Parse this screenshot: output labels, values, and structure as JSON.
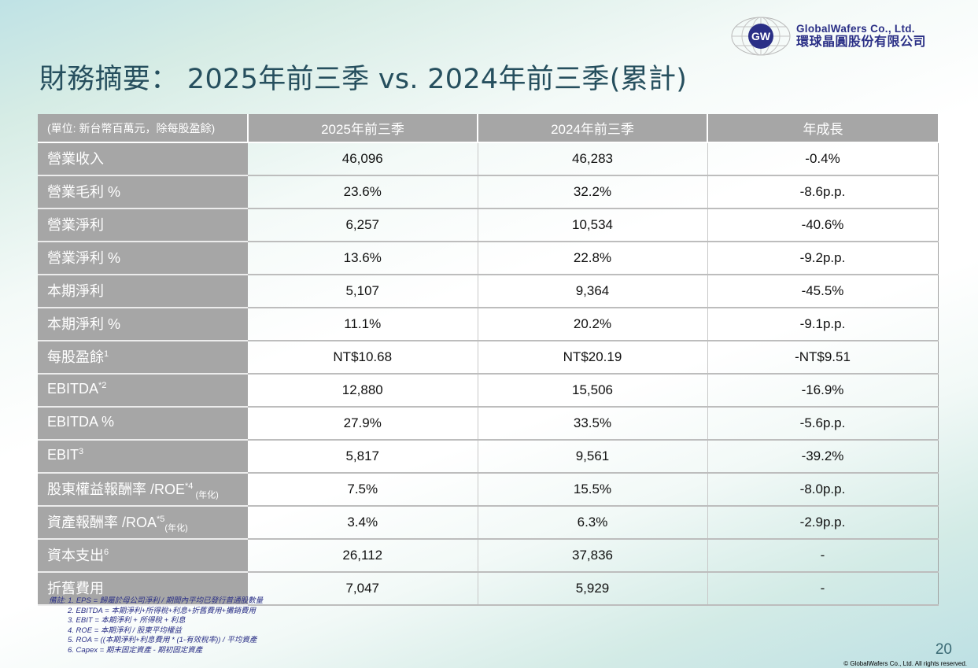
{
  "logo": {
    "icon_text": "GW",
    "company_en": "GlobalWafers Co., Ltd.",
    "company_zh": "環球晶圓股份有限公司"
  },
  "title": "財務摘要： 2025年前三季 vs. 2024年前三季(累計)",
  "table": {
    "headers": [
      "(單位: 新台幣百萬元，除每股盈餘)",
      "2025年前三季",
      "2024年前三季",
      "年成長"
    ],
    "rows": [
      {
        "label": "營業收入",
        "sup": "",
        "sub": "",
        "v2025": "46,096",
        "v2024": "46,283",
        "growth": "-0.4%"
      },
      {
        "label": "營業毛利 %",
        "sup": "",
        "sub": "",
        "v2025": "23.6%",
        "v2024": "32.2%",
        "growth": "-8.6p.p."
      },
      {
        "label": "營業淨利",
        "sup": "",
        "sub": "",
        "v2025": "6,257",
        "v2024": "10,534",
        "growth": "-40.6%"
      },
      {
        "label": "營業淨利 %",
        "sup": "",
        "sub": "",
        "v2025": "13.6%",
        "v2024": "22.8%",
        "growth": "-9.2p.p."
      },
      {
        "label": "本期淨利",
        "sup": "",
        "sub": "",
        "v2025": "5,107",
        "v2024": "9,364",
        "growth": "-45.5%"
      },
      {
        "label": "本期淨利 %",
        "sup": "",
        "sub": "",
        "v2025": "11.1%",
        "v2024": "20.2%",
        "growth": "-9.1p.p."
      },
      {
        "label": "每股盈餘",
        "sup": "1",
        "sub": "",
        "v2025": "NT$10.68",
        "v2024": "NT$20.19",
        "growth": "-NT$9.51"
      },
      {
        "label": "EBITDA",
        "sup": "*2",
        "sub": "",
        "v2025": "12,880",
        "v2024": "15,506",
        "growth": "-16.9%"
      },
      {
        "label": "EBITDA %",
        "sup": "",
        "sub": "",
        "v2025": "27.9%",
        "v2024": "33.5%",
        "growth": "-5.6p.p."
      },
      {
        "label": "EBIT",
        "sup": "3",
        "sub": "",
        "v2025": "5,817",
        "v2024": "9,561",
        "growth": "-39.2%"
      },
      {
        "label": "股東權益報酬率 /ROE",
        "sup": "*4",
        "sub": " (年化)",
        "v2025": "7.5%",
        "v2024": "15.5%",
        "growth": "-8.0p.p."
      },
      {
        "label": "資產報酬率 /ROA",
        "sup": "*5",
        "sub": "(年化)",
        "v2025": "3.4%",
        "v2024": "6.3%",
        "growth": "-2.9p.p."
      },
      {
        "label": "資本支出",
        "sup": "6",
        "sub": "",
        "v2025": "26,112",
        "v2024": "37,836",
        "growth": "-"
      },
      {
        "label": "折舊費用",
        "sup": "",
        "sub": "",
        "v2025": "7,047",
        "v2024": "5,929",
        "growth": "-"
      }
    ]
  },
  "notes": [
    "備註: 1. EPS = 歸屬於母公司淨利 / 期間內平均已發行普通股數量",
    "2. EBITDA = 本期淨利+所得稅+利息+折舊費用+攤銷費用",
    "3. EBIT = 本期淨利 + 所得稅 + 利息",
    "4. ROE = 本期淨利 / 股東平均權益",
    "5. ROA = ((本期淨利+利息費用 * (1-有效稅率)) / 平均資產",
    "6. Capex = 期末固定資產 - 期初固定資產"
  ],
  "page_number": "20",
  "copyright": "© GlobalWafers Co., Ltd.  All rights reserved."
}
